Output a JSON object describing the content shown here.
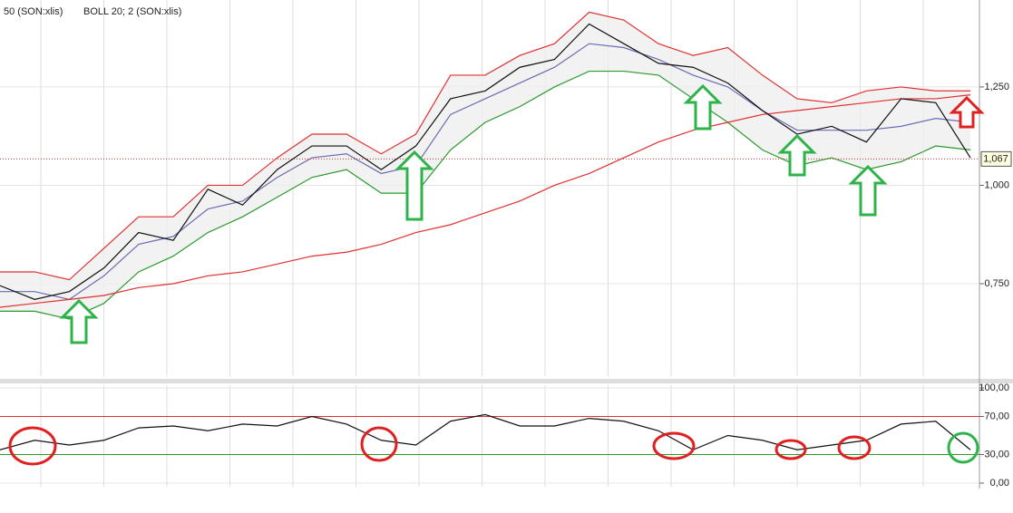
{
  "chart_data": [
    {
      "type": "line",
      "indicators": [
        "50 (SON:xlis)",
        "BOLL 20; 2 (SON:xlis)"
      ],
      "ylim": [
        0.515,
        1.471
      ],
      "yticks": [
        {
          "value": 1.25,
          "label": "1,250"
        },
        {
          "value": 1.0,
          "label": "1,000"
        },
        {
          "value": 0.75,
          "label": "0,750"
        }
      ],
      "last_value": 1.067,
      "last_label": "1,067",
      "series": [
        {
          "color": "#e03030",
          "values": [
            0.78,
            0.78,
            0.76,
            0.84,
            0.92,
            0.92,
            1.0,
            1.0,
            1.07,
            1.13,
            1.13,
            1.08,
            1.13,
            1.28,
            1.28,
            1.33,
            1.36,
            1.44,
            1.42,
            1.36,
            1.33,
            1.35,
            1.28,
            1.22,
            1.21,
            1.24,
            1.25,
            1.24,
            1.24
          ]
        },
        {
          "color": "#2a9a2a",
          "values": [
            0.68,
            0.68,
            0.66,
            0.7,
            0.78,
            0.82,
            0.88,
            0.92,
            0.97,
            1.02,
            1.04,
            0.98,
            0.98,
            1.09,
            1.16,
            1.2,
            1.25,
            1.29,
            1.29,
            1.28,
            1.22,
            1.16,
            1.09,
            1.05,
            1.07,
            1.04,
            1.06,
            1.1,
            1.09
          ]
        },
        {
          "color": "#6b6bb5",
          "values": [
            0.73,
            0.73,
            0.71,
            0.77,
            0.85,
            0.87,
            0.94,
            0.96,
            1.02,
            1.07,
            1.08,
            1.03,
            1.05,
            1.18,
            1.22,
            1.26,
            1.3,
            1.36,
            1.35,
            1.32,
            1.28,
            1.25,
            1.19,
            1.14,
            1.14,
            1.14,
            1.15,
            1.17,
            1.16
          ]
        },
        {
          "color": "#e03030",
          "values": [
            0.69,
            0.7,
            0.71,
            0.72,
            0.74,
            0.75,
            0.77,
            0.78,
            0.8,
            0.82,
            0.83,
            0.85,
            0.88,
            0.9,
            0.93,
            0.96,
            1.0,
            1.03,
            1.07,
            1.11,
            1.14,
            1.16,
            1.18,
            1.19,
            1.2,
            1.21,
            1.22,
            1.22,
            1.23
          ]
        },
        {
          "color": "#111111",
          "values": [
            0.745,
            0.71,
            0.73,
            0.79,
            0.88,
            0.86,
            0.99,
            0.95,
            1.04,
            1.1,
            1.1,
            1.04,
            1.1,
            1.22,
            1.24,
            1.3,
            1.32,
            1.41,
            1.36,
            1.31,
            1.3,
            1.26,
            1.19,
            1.13,
            1.15,
            1.11,
            1.22,
            1.21,
            1.07
          ]
        }
      ]
    },
    {
      "type": "line",
      "ylim": [
        0,
        100
      ],
      "yticks": [
        {
          "value": 100,
          "label": "100,00"
        },
        {
          "value": 70,
          "label": "70,00"
        },
        {
          "value": 30,
          "label": "30,00"
        },
        {
          "value": 0,
          "label": "0,00"
        }
      ],
      "levels": [
        {
          "value": 70,
          "color": "#e03030"
        },
        {
          "value": 30,
          "color": "#2a9a2a"
        }
      ],
      "series": [
        {
          "color": "#111111",
          "values": [
            35,
            45,
            40,
            45,
            58,
            60,
            55,
            62,
            60,
            70,
            62,
            45,
            40,
            65,
            72,
            60,
            60,
            68,
            65,
            55,
            35,
            50,
            45,
            35,
            40,
            45,
            62,
            65,
            35
          ]
        }
      ]
    }
  ]
}
